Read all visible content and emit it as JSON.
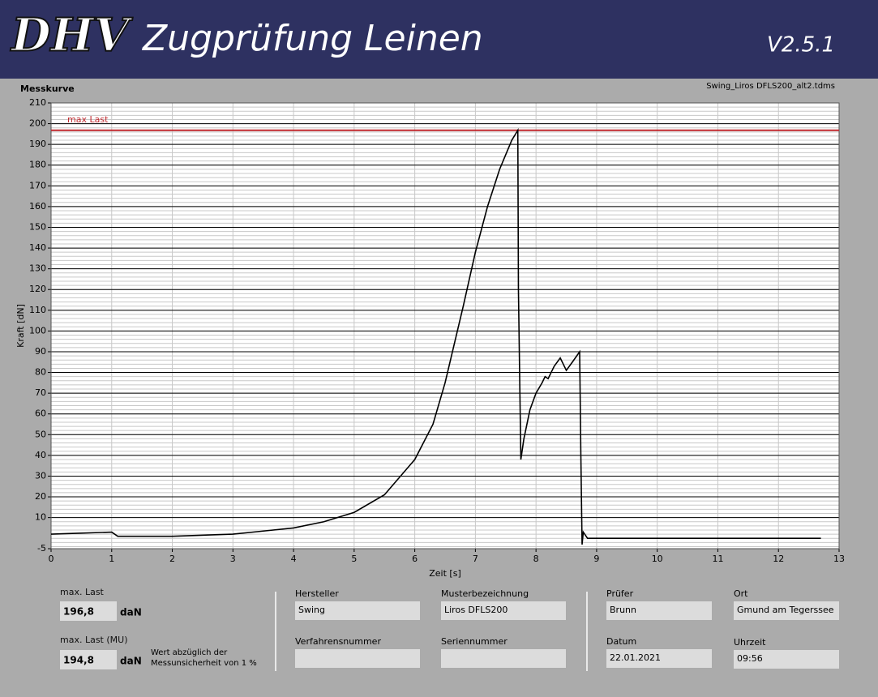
{
  "header": {
    "logo": "DHV",
    "title": "Zugprüfung Leinen",
    "version": "V2.5.1"
  },
  "chart_data": {
    "type": "line",
    "title": "Messkurve",
    "file": "Swing_Liros DFLS200_alt2.tdms",
    "x_label": "Zeit [s]",
    "y_label": "Kraft [dN]",
    "xlim": [
      0,
      13
    ],
    "ylim": [
      -5,
      210
    ],
    "xticks": [
      0,
      1,
      2,
      3,
      4,
      5,
      6,
      7,
      8,
      9,
      10,
      11,
      12,
      13
    ],
    "yticks": [
      -5,
      10,
      20,
      30,
      40,
      50,
      60,
      70,
      80,
      90,
      100,
      110,
      120,
      130,
      140,
      150,
      160,
      170,
      180,
      190,
      200,
      210
    ],
    "grid": true,
    "series": [
      {
        "color": "#000000",
        "x": [
          0,
          0.5,
          1.0,
          1.1,
          2,
          3,
          3.5,
          4,
          4.5,
          5,
          5.5,
          6,
          6.3,
          6.5,
          6.8,
          7.0,
          7.2,
          7.4,
          7.6,
          7.7,
          7.71,
          7.75,
          7.8,
          7.9,
          8.0,
          8.1,
          8.15,
          8.2,
          8.3,
          8.4,
          8.5,
          8.6,
          8.72,
          8.74,
          8.76,
          8.78,
          8.85,
          10,
          11,
          12,
          12.7
        ],
        "values": [
          2,
          2.5,
          3,
          1,
          1,
          2,
          3.5,
          5,
          8,
          12.5,
          21,
          38,
          55,
          75,
          112,
          138,
          160,
          178,
          192,
          196.8,
          120,
          38,
          48,
          62,
          70,
          75,
          78,
          77,
          83,
          87,
          81,
          85,
          90,
          40,
          -3,
          3,
          0,
          0,
          0,
          0,
          0
        ]
      }
    ],
    "reference_line": {
      "label": "max Last",
      "value": 196.8,
      "color": "#c0282d"
    }
  },
  "results": {
    "max_last": {
      "label": "max. Last",
      "value": "196,8",
      "unit": "daN"
    },
    "max_last_mu": {
      "label": "max. Last (MU)",
      "value": "194,8",
      "unit": "daN",
      "note": [
        "Wert abzüglich der",
        "Messunsicherheit von 1 %"
      ]
    }
  },
  "fields": {
    "hersteller": {
      "label": "Hersteller",
      "value": "Swing"
    },
    "musterbezeichnung": {
      "label": "Musterbezeichnung",
      "value": "Liros DFLS200"
    },
    "verfahrensnummer": {
      "label": "Verfahrensnummer"
    },
    "seriennummer": {
      "label": "Seriennummer"
    },
    "pruefer": {
      "label": "Prüfer",
      "value": "Brunn"
    },
    "ort": {
      "label": "Ort",
      "value": "Gmund am Tegerssee"
    },
    "datum": {
      "label": "Datum",
      "value": "22.01.2021"
    },
    "uhrzeit": {
      "label": "Uhrzeit",
      "value": "09:56"
    }
  }
}
